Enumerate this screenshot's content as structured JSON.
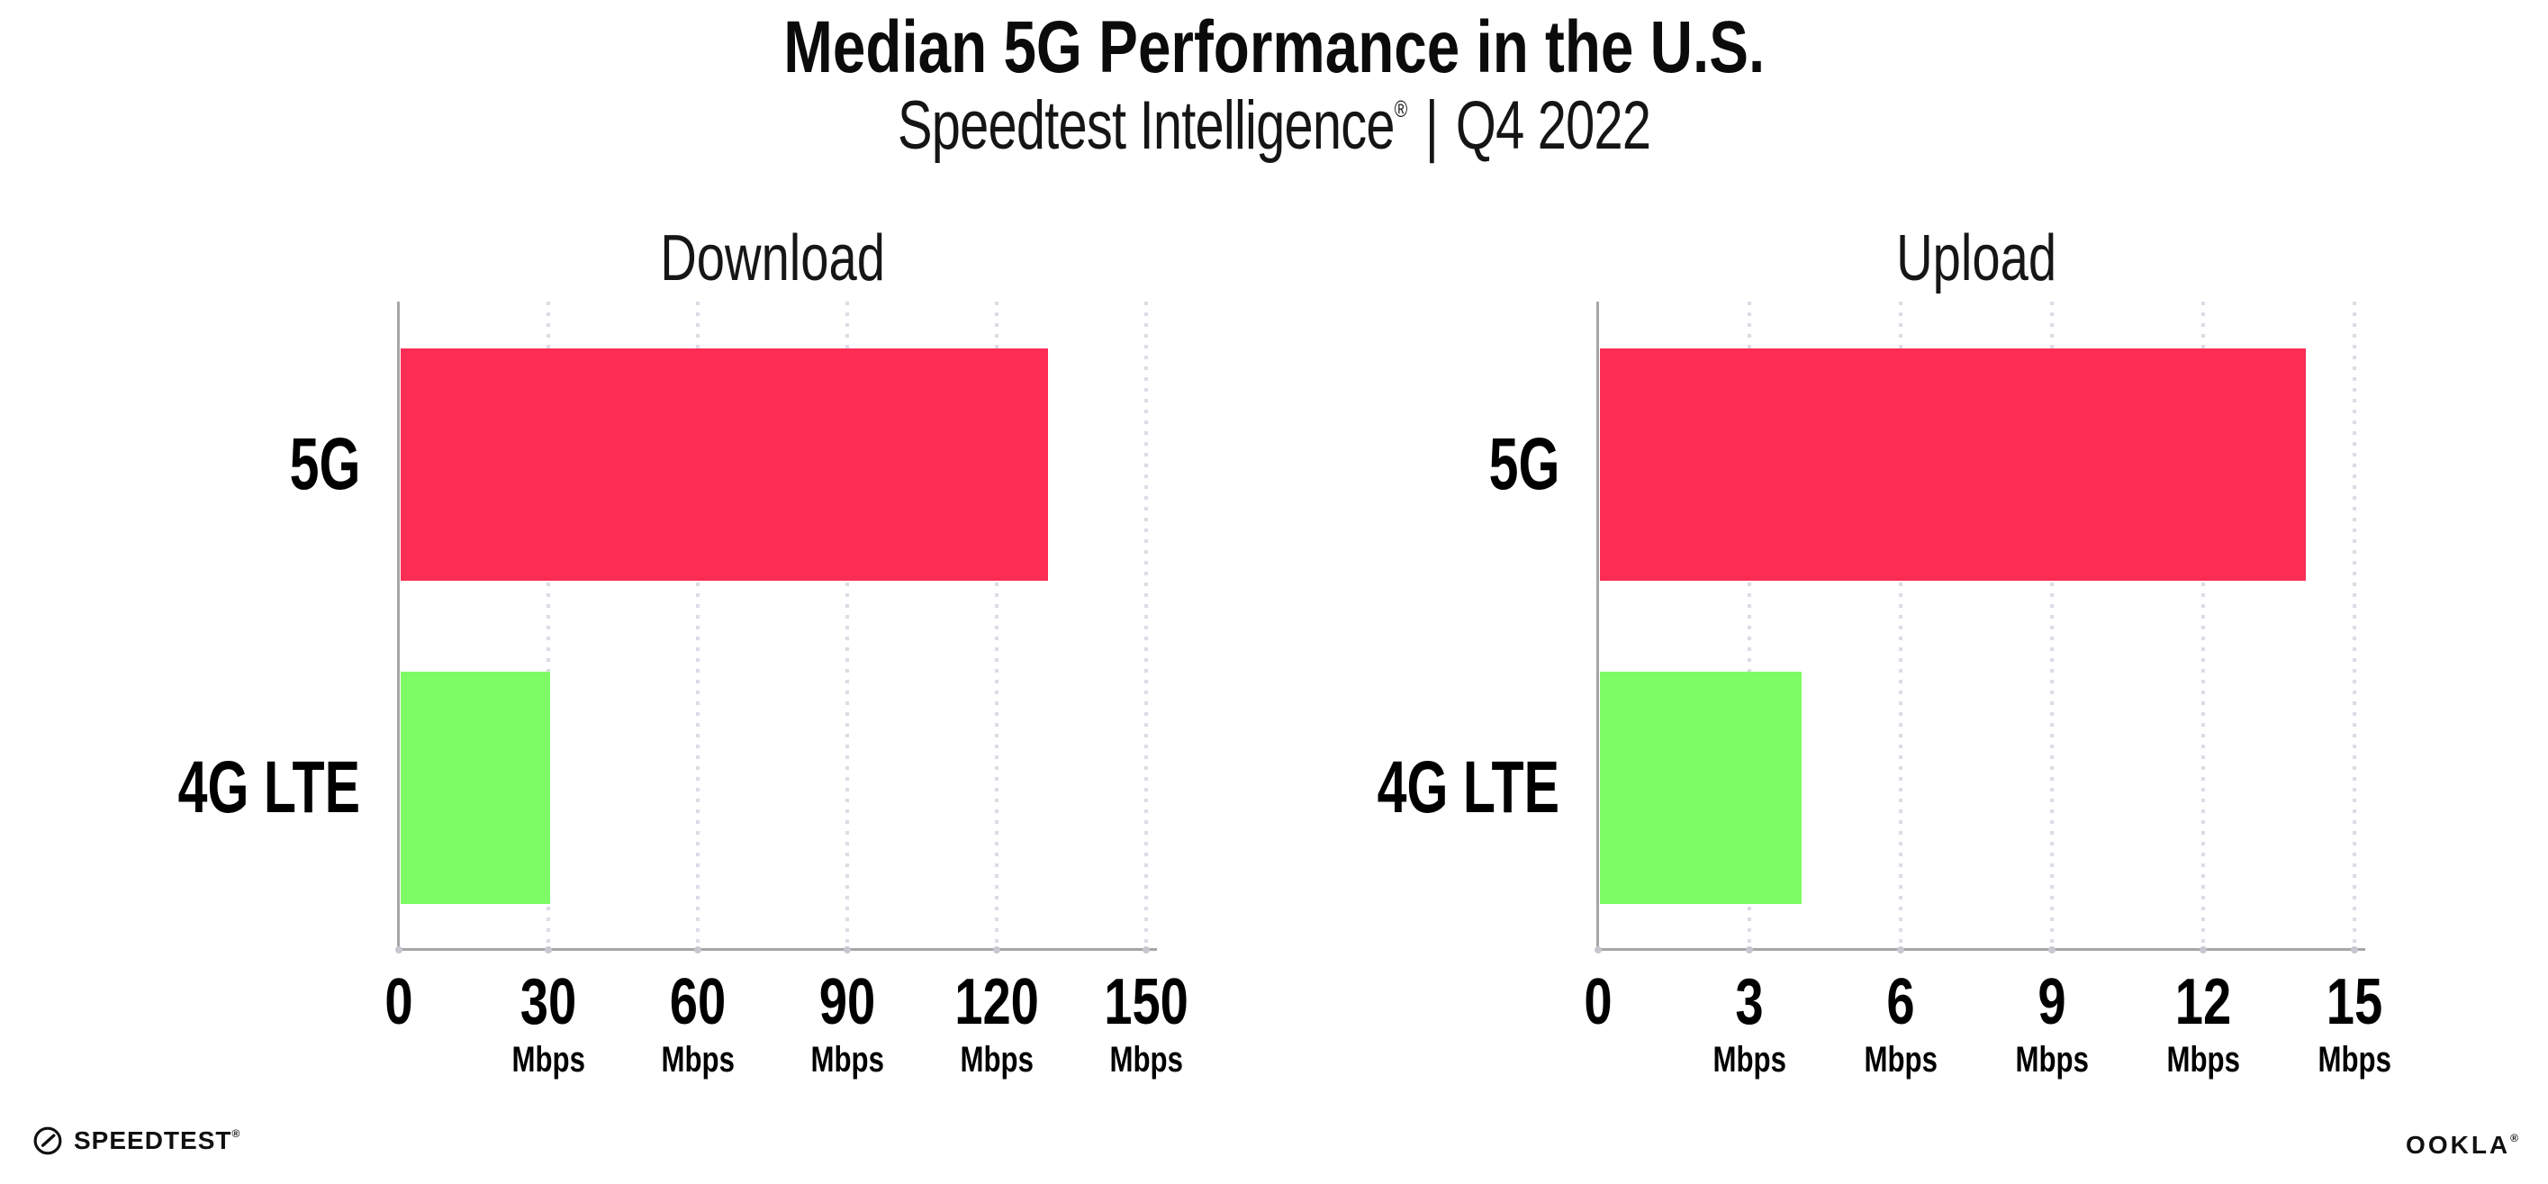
{
  "header": {
    "title": "Median 5G Performance in the U.S.",
    "subtitle": {
      "brand": "Speedtest Intelligence",
      "mark": "®",
      "separator": "|",
      "period": "Q4 2022"
    }
  },
  "chart_data": [
    {
      "type": "bar",
      "orientation": "horizontal",
      "title": "Download",
      "categories": [
        "5G",
        "4G LTE"
      ],
      "values": [
        130,
        30
      ],
      "unit": "Mbps",
      "xlim": [
        0,
        150
      ],
      "xticks": [
        0,
        30,
        60,
        90,
        120,
        150
      ],
      "grid": "vertical-dotted",
      "legend": "none",
      "bar_colors": [
        "#FC2D55",
        "#7EFC66"
      ]
    },
    {
      "type": "bar",
      "orientation": "horizontal",
      "title": "Upload",
      "categories": [
        "5G",
        "4G LTE"
      ],
      "values": [
        14,
        4
      ],
      "unit": "Mbps",
      "xlim": [
        0,
        15
      ],
      "xticks": [
        0,
        3,
        6,
        9,
        12,
        15
      ],
      "grid": "vertical-dotted",
      "legend": "none",
      "bar_colors": [
        "#FC2D55",
        "#7EFC66"
      ]
    }
  ],
  "colors": {
    "bar_5g": "#FC2D55",
    "bar_4g_lte": "#7EFC66",
    "gridline": "#DCDCE6",
    "axis": "#A6A6A6",
    "text": "#0D0D0D"
  },
  "footer": {
    "speedtest_label": "SPEEDTEST",
    "speedtest_mark": "®",
    "speedtest_icon": "speedtest-gauge-icon",
    "ookla_label": "OOKLA",
    "ookla_mark": "®"
  }
}
